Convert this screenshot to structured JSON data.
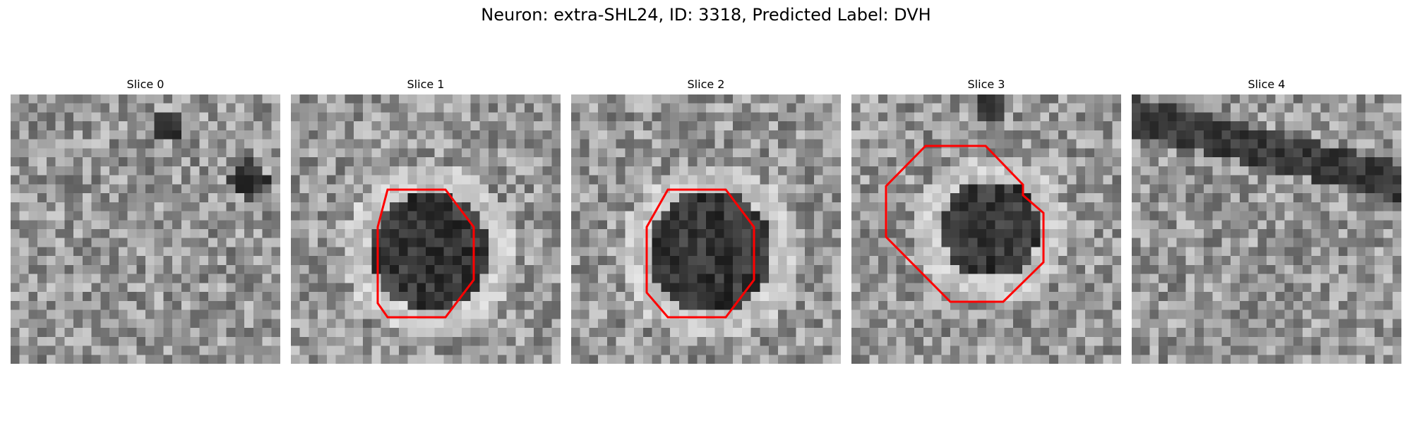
{
  "title": "Neuron: extra-SHL24, ID: 3318, Predicted Label: DVH",
  "panels": [
    {
      "label": "Slice 0",
      "has_outline": false
    },
    {
      "label": "Slice 1",
      "has_outline": true
    },
    {
      "label": "Slice 2",
      "has_outline": true
    },
    {
      "label": "Slice 3",
      "has_outline": true
    },
    {
      "label": "Slice 4",
      "has_outline": false
    }
  ],
  "outline_color": "#ff0000",
  "colormap": "gray"
}
